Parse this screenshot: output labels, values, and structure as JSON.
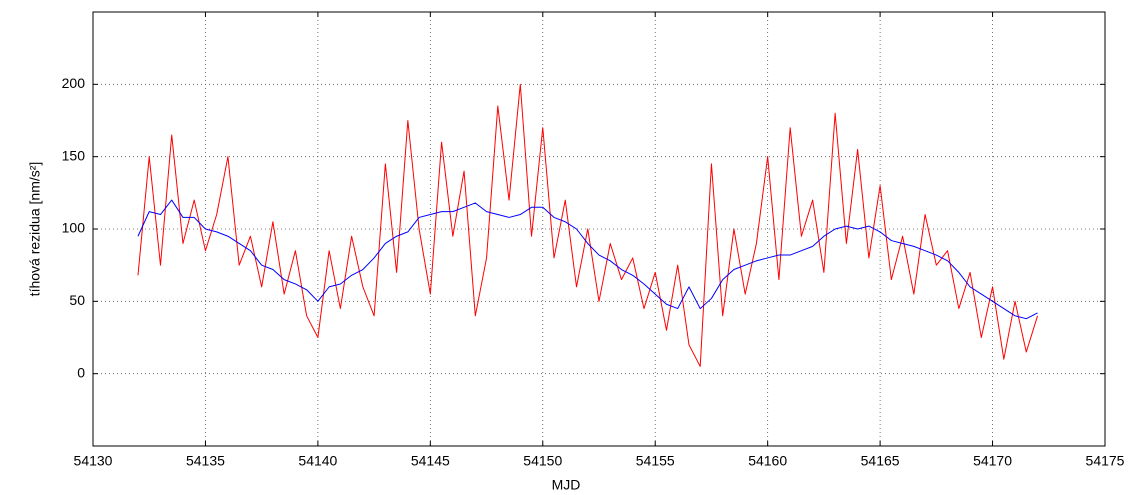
{
  "chart_data": {
    "type": "line",
    "x_label": "MJD",
    "y_label": "tíhová rezidua [nm/s²]",
    "xlim": [
      54130,
      54175
    ],
    "xticks": [
      54130,
      54135,
      54140,
      54145,
      54150,
      54155,
      54160,
      54165,
      54170,
      54175
    ],
    "ylim": [
      -50,
      250
    ],
    "yticks": [
      0,
      50,
      100,
      150,
      200
    ],
    "grid": true,
    "x": [
      54132,
      54132.5,
      54133,
      54133.5,
      54134,
      54134.5,
      54135,
      54135.5,
      54136,
      54136.5,
      54137,
      54137.5,
      54138,
      54138.5,
      54139,
      54139.5,
      54140,
      54140.5,
      54141,
      54141.5,
      54142,
      54142.5,
      54143,
      54143.5,
      54144,
      54144.5,
      54145,
      54145.5,
      54146,
      54146.5,
      54147,
      54147.5,
      54148,
      54148.5,
      54149,
      54149.5,
      54150,
      54150.5,
      54151,
      54151.5,
      54152,
      54152.5,
      54153,
      54153.5,
      54154,
      54154.5,
      54155,
      54155.5,
      54156,
      54156.5,
      54157,
      54157.5,
      54158,
      54158.5,
      54159,
      54159.5,
      54160,
      54160.5,
      54161,
      54161.5,
      54162,
      54162.5,
      54163,
      54163.5,
      54164,
      54164.5,
      54165,
      54165.5,
      54166,
      54166.5,
      54167,
      54167.5,
      54168,
      54168.5,
      54169,
      54169.5,
      54170,
      54170.5,
      54171,
      54171.5,
      54172
    ],
    "series": [
      {
        "color": "#ff0000",
        "values": [
          68,
          150,
          75,
          165,
          90,
          120,
          85,
          110,
          150,
          75,
          95,
          60,
          105,
          55,
          85,
          40,
          25,
          85,
          45,
          95,
          60,
          40,
          145,
          70,
          175,
          100,
          55,
          160,
          95,
          140,
          40,
          80,
          185,
          120,
          200,
          95,
          170,
          80,
          120,
          60,
          100,
          50,
          90,
          65,
          80,
          45,
          70,
          30,
          75,
          20,
          5,
          145,
          40,
          100,
          55,
          90,
          150,
          65,
          170,
          95,
          120,
          70,
          180,
          90,
          155,
          80,
          130,
          65,
          95,
          55,
          110,
          75,
          85,
          45,
          70,
          25,
          60,
          10,
          50,
          15,
          40
        ]
      },
      {
        "color": "#0000ff",
        "values": [
          95,
          112,
          110,
          120,
          108,
          108,
          100,
          98,
          95,
          90,
          85,
          75,
          72,
          65,
          62,
          58,
          50,
          60,
          62,
          68,
          72,
          80,
          90,
          95,
          98,
          108,
          110,
          112,
          112,
          115,
          118,
          112,
          110,
          108,
          110,
          115,
          115,
          108,
          105,
          100,
          90,
          82,
          78,
          72,
          68,
          62,
          55,
          48,
          45,
          60,
          45,
          52,
          65,
          72,
          75,
          78,
          80,
          82,
          82,
          85,
          88,
          95,
          100,
          102,
          100,
          102,
          98,
          92,
          90,
          88,
          85,
          82,
          78,
          70,
          60,
          55,
          50,
          45,
          40,
          38,
          42
        ]
      }
    ]
  }
}
